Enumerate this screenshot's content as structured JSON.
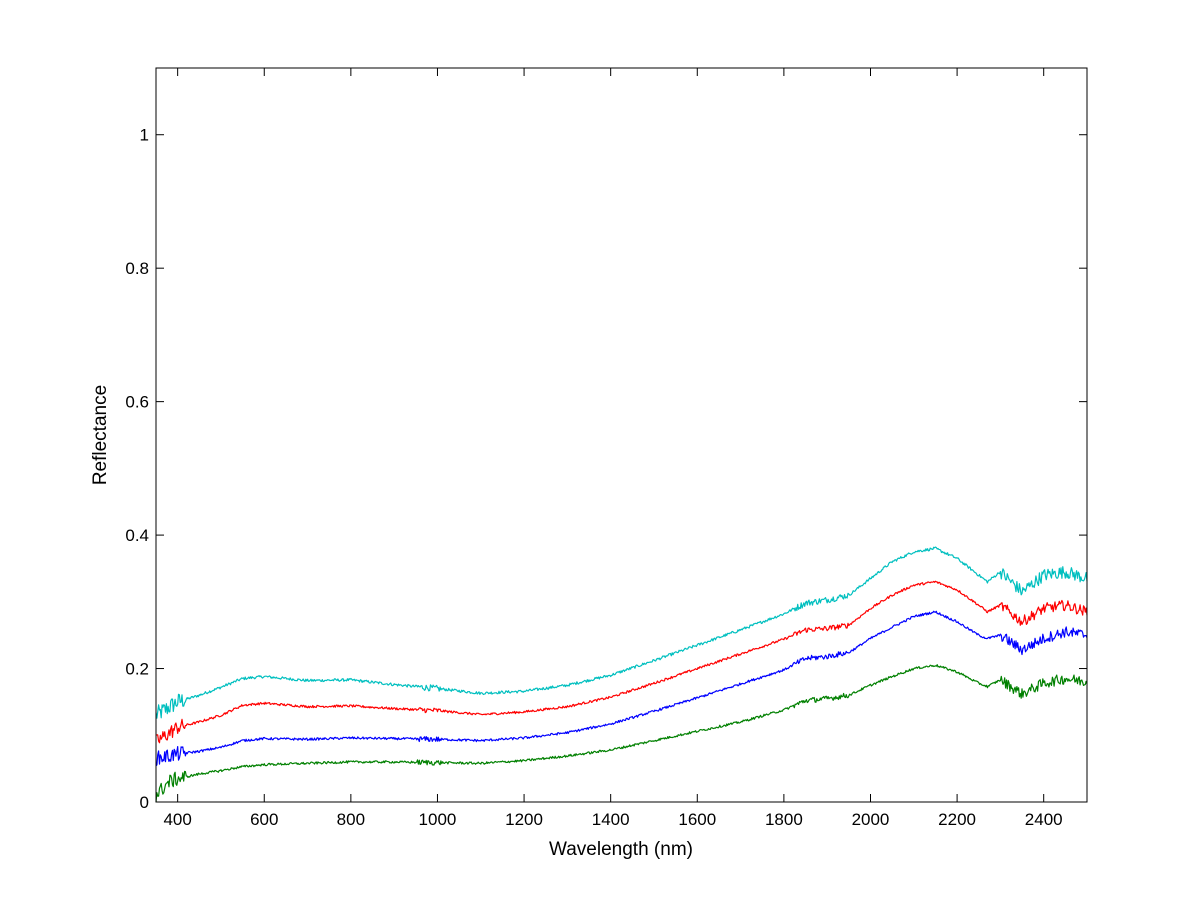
{
  "chart_data": {
    "type": "line",
    "title": "",
    "xlabel": "Wavelength (nm)",
    "ylabel": "Reflectance",
    "xlim": [
      350,
      2500
    ],
    "ylim": [
      0,
      1.1
    ],
    "x_ticks": [
      400,
      600,
      800,
      1000,
      1200,
      1400,
      1600,
      1800,
      2000,
      2200,
      2400
    ],
    "y_ticks": [
      0,
      0.2,
      0.4,
      0.6,
      0.8,
      1
    ],
    "y_tick_labels": [
      "0",
      "0.2",
      "0.4",
      "0.6",
      "0.8",
      "1"
    ],
    "grid": false,
    "legend": "none",
    "series": [
      {
        "color": "#00bfbf",
        "noise": 0.006,
        "points": [
          [
            350,
            0.13
          ],
          [
            400,
            0.15
          ],
          [
            450,
            0.16
          ],
          [
            500,
            0.172
          ],
          [
            550,
            0.185
          ],
          [
            600,
            0.188
          ],
          [
            700,
            0.182
          ],
          [
            800,
            0.183
          ],
          [
            900,
            0.176
          ],
          [
            1000,
            0.17
          ],
          [
            1100,
            0.163
          ],
          [
            1200,
            0.166
          ],
          [
            1300,
            0.175
          ],
          [
            1400,
            0.19
          ],
          [
            1500,
            0.212
          ],
          [
            1600,
            0.235
          ],
          [
            1700,
            0.258
          ],
          [
            1800,
            0.282
          ],
          [
            1850,
            0.298
          ],
          [
            1900,
            0.303
          ],
          [
            1950,
            0.31
          ],
          [
            2000,
            0.335
          ],
          [
            2050,
            0.36
          ],
          [
            2100,
            0.375
          ],
          [
            2150,
            0.38
          ],
          [
            2200,
            0.365
          ],
          [
            2250,
            0.34
          ],
          [
            2270,
            0.33
          ],
          [
            2300,
            0.345
          ],
          [
            2350,
            0.315
          ],
          [
            2400,
            0.34
          ],
          [
            2450,
            0.345
          ],
          [
            2500,
            0.335
          ]
        ]
      },
      {
        "color": "#ff0000",
        "noise": 0.005,
        "points": [
          [
            350,
            0.09
          ],
          [
            400,
            0.112
          ],
          [
            450,
            0.12
          ],
          [
            500,
            0.13
          ],
          [
            550,
            0.145
          ],
          [
            600,
            0.148
          ],
          [
            700,
            0.143
          ],
          [
            800,
            0.144
          ],
          [
            900,
            0.14
          ],
          [
            1000,
            0.137
          ],
          [
            1100,
            0.131
          ],
          [
            1200,
            0.135
          ],
          [
            1300,
            0.143
          ],
          [
            1400,
            0.157
          ],
          [
            1500,
            0.178
          ],
          [
            1600,
            0.2
          ],
          [
            1700,
            0.222
          ],
          [
            1800,
            0.244
          ],
          [
            1850,
            0.258
          ],
          [
            1900,
            0.26
          ],
          [
            1950,
            0.265
          ],
          [
            2000,
            0.29
          ],
          [
            2050,
            0.31
          ],
          [
            2100,
            0.325
          ],
          [
            2150,
            0.33
          ],
          [
            2200,
            0.318
          ],
          [
            2250,
            0.295
          ],
          [
            2270,
            0.285
          ],
          [
            2300,
            0.295
          ],
          [
            2350,
            0.27
          ],
          [
            2400,
            0.29
          ],
          [
            2450,
            0.295
          ],
          [
            2500,
            0.285
          ]
        ]
      },
      {
        "color": "#0000ff",
        "noise": 0.005,
        "points": [
          [
            350,
            0.065
          ],
          [
            400,
            0.072
          ],
          [
            450,
            0.076
          ],
          [
            500,
            0.082
          ],
          [
            550,
            0.092
          ],
          [
            600,
            0.095
          ],
          [
            700,
            0.094
          ],
          [
            800,
            0.096
          ],
          [
            900,
            0.095
          ],
          [
            1000,
            0.094
          ],
          [
            1100,
            0.092
          ],
          [
            1200,
            0.096
          ],
          [
            1300,
            0.104
          ],
          [
            1400,
            0.117
          ],
          [
            1500,
            0.136
          ],
          [
            1600,
            0.156
          ],
          [
            1700,
            0.177
          ],
          [
            1800,
            0.198
          ],
          [
            1850,
            0.215
          ],
          [
            1900,
            0.218
          ],
          [
            1950,
            0.224
          ],
          [
            2000,
            0.245
          ],
          [
            2050,
            0.262
          ],
          [
            2100,
            0.278
          ],
          [
            2150,
            0.285
          ],
          [
            2200,
            0.27
          ],
          [
            2250,
            0.25
          ],
          [
            2270,
            0.245
          ],
          [
            2300,
            0.25
          ],
          [
            2350,
            0.228
          ],
          [
            2400,
            0.245
          ],
          [
            2450,
            0.255
          ],
          [
            2500,
            0.25
          ]
        ]
      },
      {
        "color": "#008000",
        "noise": 0.005,
        "points": [
          [
            350,
            0.01
          ],
          [
            380,
            0.03
          ],
          [
            400,
            0.035
          ],
          [
            450,
            0.042
          ],
          [
            500,
            0.047
          ],
          [
            550,
            0.053
          ],
          [
            600,
            0.056
          ],
          [
            700,
            0.058
          ],
          [
            800,
            0.06
          ],
          [
            900,
            0.06
          ],
          [
            1000,
            0.059
          ],
          [
            1100,
            0.058
          ],
          [
            1200,
            0.062
          ],
          [
            1300,
            0.069
          ],
          [
            1400,
            0.078
          ],
          [
            1500,
            0.092
          ],
          [
            1600,
            0.106
          ],
          [
            1700,
            0.12
          ],
          [
            1800,
            0.138
          ],
          [
            1850,
            0.152
          ],
          [
            1900,
            0.155
          ],
          [
            1950,
            0.16
          ],
          [
            2000,
            0.175
          ],
          [
            2050,
            0.188
          ],
          [
            2100,
            0.2
          ],
          [
            2150,
            0.205
          ],
          [
            2200,
            0.195
          ],
          [
            2250,
            0.178
          ],
          [
            2270,
            0.173
          ],
          [
            2300,
            0.183
          ],
          [
            2350,
            0.162
          ],
          [
            2400,
            0.178
          ],
          [
            2450,
            0.185
          ],
          [
            2500,
            0.18
          ]
        ]
      }
    ]
  }
}
